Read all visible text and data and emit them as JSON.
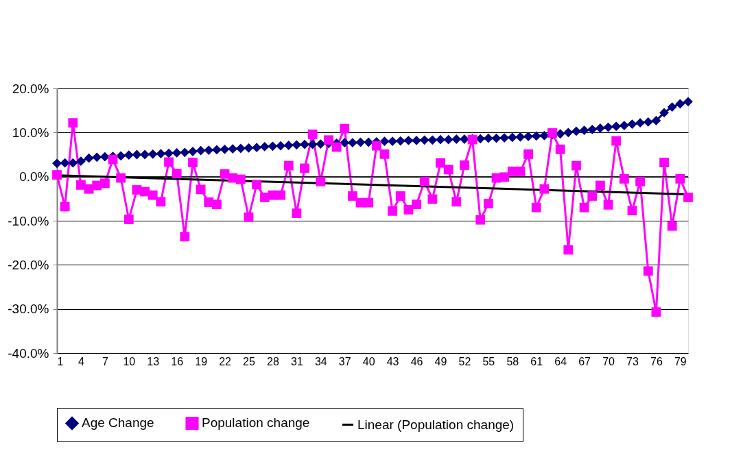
{
  "chart_data": {
    "type": "line",
    "x": [
      1,
      2,
      3,
      4,
      5,
      6,
      7,
      8,
      9,
      10,
      11,
      12,
      13,
      14,
      15,
      16,
      17,
      18,
      19,
      20,
      21,
      22,
      23,
      24,
      25,
      26,
      27,
      28,
      29,
      30,
      31,
      32,
      33,
      34,
      35,
      36,
      37,
      38,
      39,
      40,
      41,
      42,
      43,
      44,
      45,
      46,
      47,
      48,
      49,
      50,
      51,
      52,
      53,
      54,
      55,
      56,
      57,
      58,
      59,
      60,
      61,
      62,
      63,
      64,
      65,
      66,
      67,
      68,
      69,
      70,
      71,
      72,
      73,
      74,
      75,
      76,
      77,
      78,
      79,
      80
    ],
    "xlim": [
      1,
      80
    ],
    "xticks": [
      1,
      4,
      7,
      10,
      13,
      16,
      19,
      22,
      25,
      28,
      31,
      34,
      37,
      40,
      43,
      46,
      49,
      52,
      55,
      58,
      61,
      64,
      67,
      70,
      73,
      76,
      79
    ],
    "ylim": [
      -40,
      20
    ],
    "yticks": [
      {
        "value": 20,
        "label": "20.0%"
      },
      {
        "value": 10,
        "label": "10.0%"
      },
      {
        "value": 0,
        "label": "0.0%"
      },
      {
        "value": -10,
        "label": "-10.0%"
      },
      {
        "value": -20,
        "label": "-20.0%"
      },
      {
        "value": -30,
        "label": "-30.0%"
      },
      {
        "value": -40,
        "label": "-40.0%"
      }
    ],
    "grid": "y",
    "legend": "bottom",
    "line_style": "solid",
    "series": [
      {
        "name": "Age Change",
        "color": "#000080",
        "marker": "diamond",
        "values": [
          3.0,
          3.1,
          3.1,
          3.5,
          4.2,
          4.4,
          4.5,
          4.6,
          4.7,
          4.9,
          5.0,
          5.0,
          5.1,
          5.2,
          5.3,
          5.4,
          5.5,
          5.7,
          5.9,
          6.0,
          6.1,
          6.2,
          6.3,
          6.4,
          6.5,
          6.6,
          6.8,
          6.9,
          7.0,
          7.1,
          7.2,
          7.3,
          7.3,
          7.4,
          7.5,
          7.6,
          7.7,
          7.7,
          7.8,
          7.8,
          7.9,
          8.0,
          8.0,
          8.1,
          8.2,
          8.2,
          8.3,
          8.3,
          8.4,
          8.4,
          8.5,
          8.5,
          8.6,
          8.6,
          8.7,
          8.7,
          8.8,
          8.9,
          9.0,
          9.1,
          9.2,
          9.3,
          9.5,
          9.7,
          10.0,
          10.3,
          10.5,
          10.7,
          11.0,
          11.2,
          11.4,
          11.6,
          11.9,
          12.2,
          12.4,
          12.7,
          14.5,
          15.8,
          16.5,
          17.0
        ]
      },
      {
        "name": "Population change",
        "color": "#ff00ff",
        "marker": "square",
        "values": [
          0.4,
          -6.8,
          12.2,
          -1.9,
          -2.8,
          -2.0,
          -1.5,
          3.9,
          -0.3,
          -9.7,
          -3.0,
          -3.4,
          -4.2,
          -5.7,
          3.3,
          0.7,
          -13.6,
          3.2,
          -2.9,
          -5.8,
          -6.3,
          0.6,
          -0.3,
          -0.6,
          -9.2,
          -1.8,
          -4.7,
          -4.2,
          -4.2,
          2.5,
          -8.3,
          1.9,
          9.6,
          -1.1,
          8.3,
          6.7,
          10.9,
          -4.4,
          -5.9,
          -5.9,
          7.0,
          5.1,
          -7.8,
          -4.4,
          -7.5,
          -6.3,
          -1.1,
          -5.1,
          3.1,
          1.6,
          -5.7,
          2.6,
          8.4,
          -9.8,
          -6.1,
          -0.3,
          -0.1,
          1.2,
          1.2,
          5.1,
          -7.0,
          -2.8,
          9.9,
          6.2,
          -16.6,
          2.5,
          -7.0,
          -4.4,
          -2.0,
          -6.4,
          8.1,
          -0.5,
          -7.7,
          -1.1,
          -21.4,
          -30.7,
          3.2,
          -11.2,
          -0.5,
          -4.7
        ]
      },
      {
        "name": "Linear (Population change)",
        "color": "#000000",
        "marker": "none",
        "x": [
          1,
          80
        ],
        "values": [
          0.3,
          -4.0
        ]
      }
    ]
  }
}
